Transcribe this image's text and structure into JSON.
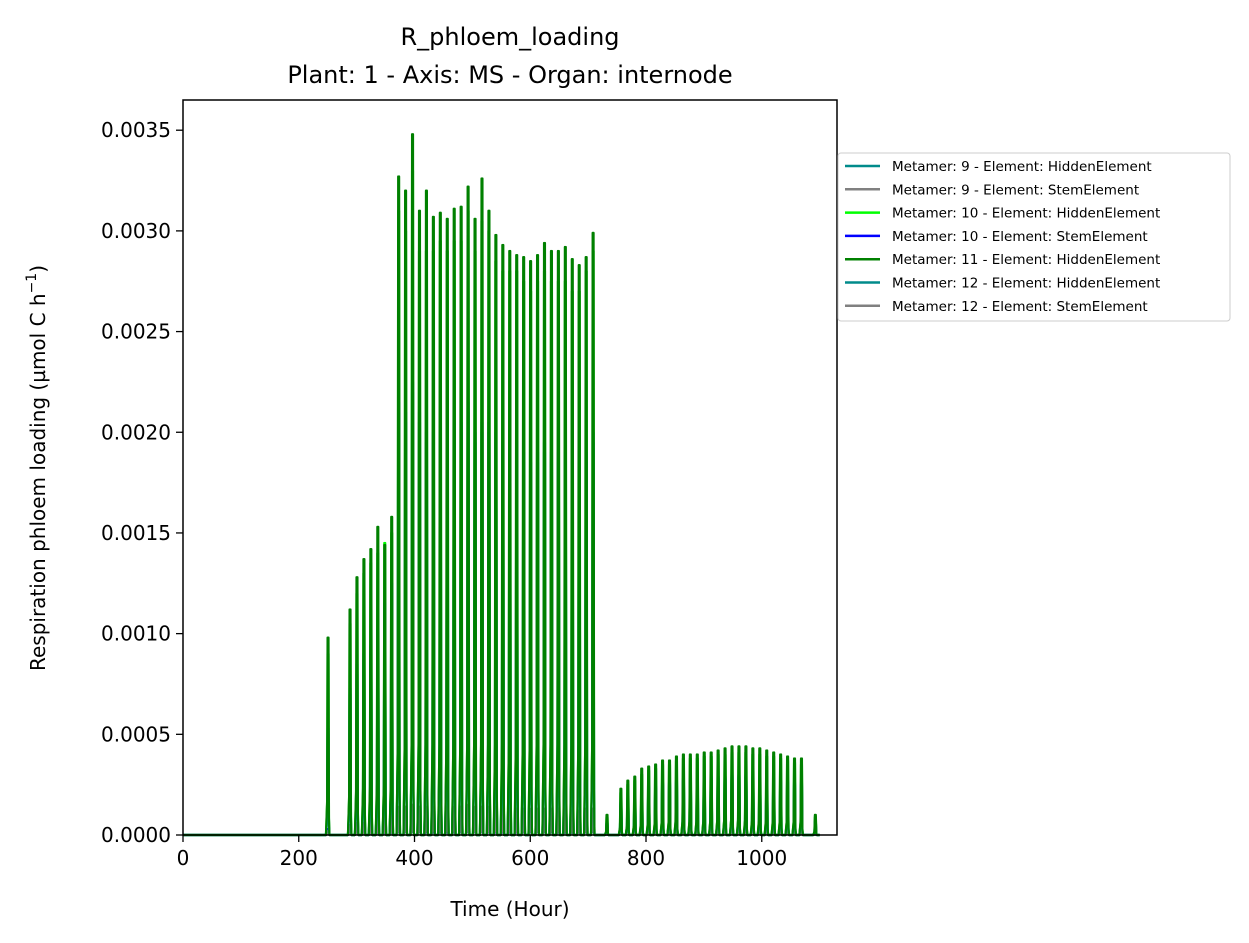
{
  "chart_data": {
    "type": "line",
    "title": "R_phloem_loading",
    "subtitle": "Plant: 1 - Axis: MS - Organ: internode",
    "xlabel": "Time (Hour)",
    "ylabel_main": "Respiration phloem loading (µmol C h",
    "ylabel_sup": "−1",
    "ylabel_tail": ")",
    "xlim": [
      0,
      1130
    ],
    "ylim": [
      0,
      0.00365
    ],
    "xticks": [
      {
        "value": 0,
        "label": "0"
      },
      {
        "value": 200,
        "label": "200"
      },
      {
        "value": 400,
        "label": "400"
      },
      {
        "value": 600,
        "label": "600"
      },
      {
        "value": 800,
        "label": "800"
      },
      {
        "value": 1000,
        "label": "1000"
      }
    ],
    "yticks": [
      {
        "value": 0,
        "label": "0.0000"
      },
      {
        "value": 0.0005,
        "label": "0.0005"
      },
      {
        "value": 0.001,
        "label": "0.0010"
      },
      {
        "value": 0.0015,
        "label": "0.0015"
      },
      {
        "value": 0.002,
        "label": "0.0020"
      },
      {
        "value": 0.0025,
        "label": "0.0025"
      },
      {
        "value": 0.003,
        "label": "0.0030"
      },
      {
        "value": 0.0035,
        "label": "0.0035"
      }
    ],
    "grid": false,
    "legend_position": "outside-right",
    "peak_times": [
      252,
      278,
      290,
      302,
      314,
      326,
      338,
      350,
      362,
      374,
      386,
      398,
      410,
      422,
      434,
      446,
      458,
      470,
      482,
      494,
      506,
      518,
      530,
      542,
      554,
      566,
      578,
      590,
      602,
      614,
      626,
      638,
      650,
      662,
      674,
      686,
      698,
      710,
      734,
      758,
      770,
      782,
      794,
      806,
      818,
      830,
      842,
      854,
      866,
      878,
      890,
      902,
      914,
      926,
      938,
      950,
      962,
      974,
      986,
      998,
      1010,
      1022,
      1034,
      1046,
      1058,
      1070,
      1094
    ],
    "series": [
      {
        "name": "Metamer: 9 - Element: HiddenElement",
        "color": "#008b8b",
        "peaks": [
          0.00053,
          0,
          0.00073,
          0.00085,
          0.0009,
          0.00094,
          0.00102,
          0.00115,
          0.00125,
          0.00215,
          0.0021,
          0.00225,
          0.0021,
          0.002,
          0.002,
          0.002,
          0.002,
          0.00205,
          0.00205,
          0.00215,
          0.002,
          0.00205,
          0.00205,
          0.002,
          0.00195,
          0.00195,
          0.00195,
          0.0019,
          0.00185,
          0.0019,
          0.00195,
          0.0019,
          0.0019,
          0.0019,
          0.00185,
          0.00185,
          0.0019,
          0.002,
          6e-05,
          0.00016,
          0.00018,
          0.0002,
          0.00022,
          0.00024,
          0.00024,
          0.00026,
          0.00026,
          0.00027,
          0.00028,
          0.00028,
          0.00028,
          0.00029,
          0.00029,
          0.00029,
          0.00029,
          0.0003,
          0.0003,
          0.0003,
          0.00029,
          0.00029,
          0.00028,
          0.00028,
          0.00027,
          0.00027,
          0.00026,
          0.00026,
          7e-05
        ]
      },
      {
        "name": "Metamer: 9 - Element: StemElement",
        "color": "#808080",
        "peaks": [
          2e-05,
          0,
          4e-05,
          5e-05,
          5e-05,
          6e-05,
          7e-05,
          7e-05,
          8e-05,
          0.00012,
          0.00013,
          0.00014,
          0.00013,
          0.00012,
          0.00012,
          0.00013,
          0.00012,
          0.00012,
          0.00013,
          0.00013,
          0.00012,
          0.00013,
          0.00012,
          0.00012,
          0.00012,
          0.00012,
          0.00012,
          0.00012,
          0.00011,
          0.00012,
          0.00012,
          0.00012,
          0.00012,
          0.00012,
          0.00011,
          0.00011,
          0.00012,
          0.00012,
          1e-05,
          2e-05,
          2e-05,
          2e-05,
          3e-05,
          3e-05,
          3e-05,
          3e-05,
          3e-05,
          3e-05,
          3e-05,
          3e-05,
          3e-05,
          3e-05,
          3e-05,
          3e-05,
          3e-05,
          3e-05,
          3e-05,
          3e-05,
          3e-05,
          3e-05,
          3e-05,
          3e-05,
          3e-05,
          3e-05,
          3e-05,
          3e-05,
          1e-05
        ]
      },
      {
        "name": "Metamer: 10 - Element: HiddenElement",
        "color": "#00ff00",
        "peaks": [
          0.0009,
          0,
          0.00105,
          0.0012,
          0.0013,
          0.00135,
          0.0014,
          0.00145,
          0.0015,
          0.0031,
          0.003,
          0.0033,
          0.0029,
          0.0029,
          0.0029,
          0.00295,
          0.0029,
          0.00295,
          0.00295,
          0.0031,
          0.0029,
          0.00305,
          0.003,
          0.00285,
          0.0028,
          0.0028,
          0.0028,
          0.00275,
          0.0027,
          0.00275,
          0.0028,
          0.00275,
          0.00275,
          0.00275,
          0.0027,
          0.0027,
          0.0028,
          0.0029,
          9e-05,
          0.00021,
          0.00025,
          0.00027,
          0.0003,
          0.00032,
          0.00033,
          0.00035,
          0.00035,
          0.00037,
          0.00038,
          0.00038,
          0.00038,
          0.00039,
          0.00039,
          0.0004,
          0.0004,
          0.00041,
          0.00041,
          0.00041,
          0.0004,
          0.0004,
          0.00039,
          0.00039,
          0.00038,
          0.00037,
          0.00036,
          0.00035,
          9e-05
        ]
      },
      {
        "name": "Metamer: 10 - Element: StemElement",
        "color": "#0000ff",
        "peaks": [
          3e-05,
          0,
          5e-05,
          6e-05,
          6e-05,
          7e-05,
          8e-05,
          8e-05,
          9e-05,
          0.00013,
          0.00014,
          0.00015,
          0.00014,
          0.00013,
          0.00013,
          0.00014,
          0.00013,
          0.00013,
          0.00014,
          0.00014,
          0.00013,
          0.00014,
          0.00013,
          0.00013,
          0.00013,
          0.00013,
          0.00013,
          0.00013,
          0.00012,
          0.00013,
          0.00013,
          0.00013,
          0.00013,
          0.00013,
          0.00012,
          0.00012,
          0.00013,
          0.00013,
          1e-05,
          2e-05,
          2e-05,
          2e-05,
          3e-05,
          3e-05,
          3e-05,
          3e-05,
          3e-05,
          3e-05,
          3e-05,
          3e-05,
          3e-05,
          3e-05,
          3e-05,
          3e-05,
          3e-05,
          3e-05,
          3e-05,
          3e-05,
          3e-05,
          3e-05,
          3e-05,
          3e-05,
          3e-05,
          3e-05,
          3e-05,
          3e-05,
          1e-05
        ]
      },
      {
        "name": "Metamer: 11 - Element: HiddenElement",
        "color": "#008000",
        "peaks": [
          0.00098,
          0,
          0.00112,
          0.00128,
          0.00137,
          0.00142,
          0.00153,
          0.00144,
          0.00158,
          0.00327,
          0.0032,
          0.00348,
          0.0031,
          0.0032,
          0.00307,
          0.00309,
          0.00306,
          0.00311,
          0.00312,
          0.00322,
          0.00306,
          0.00326,
          0.0031,
          0.00298,
          0.00293,
          0.0029,
          0.00288,
          0.00287,
          0.00285,
          0.00288,
          0.00294,
          0.0029,
          0.0029,
          0.00292,
          0.00286,
          0.00283,
          0.00287,
          0.00299,
          0.0001,
          0.00023,
          0.00027,
          0.00029,
          0.00033,
          0.00034,
          0.00035,
          0.00037,
          0.00037,
          0.00039,
          0.0004,
          0.0004,
          0.0004,
          0.00041,
          0.00041,
          0.00042,
          0.00043,
          0.00044,
          0.00044,
          0.00044,
          0.00043,
          0.00043,
          0.00042,
          0.00041,
          0.0004,
          0.00039,
          0.00038,
          0.00038,
          0.0001
        ]
      },
      {
        "name": "Metamer: 12 - Element: HiddenElement",
        "color": "#008b8b",
        "peaks": [
          0.0005,
          0,
          0.0007,
          0.0008,
          0.00087,
          0.0009,
          0.00098,
          0.0011,
          0.0012,
          0.0021,
          0.00205,
          0.0022,
          0.00205,
          0.00195,
          0.00195,
          0.00195,
          0.00195,
          0.002,
          0.002,
          0.0021,
          0.00195,
          0.002,
          0.002,
          0.00195,
          0.0019,
          0.0019,
          0.0019,
          0.00185,
          0.0018,
          0.00185,
          0.0019,
          0.00185,
          0.00185,
          0.00185,
          0.0018,
          0.0018,
          0.00185,
          0.00195,
          6e-05,
          0.00015,
          0.00017,
          0.00019,
          0.00021,
          0.00023,
          0.00023,
          0.00025,
          0.00025,
          0.00026,
          0.00027,
          0.00027,
          0.00027,
          0.00028,
          0.00028,
          0.00028,
          0.00028,
          0.00029,
          0.00029,
          0.00029,
          0.00028,
          0.00028,
          0.00027,
          0.00027,
          0.00026,
          0.00026,
          0.00025,
          0.00025,
          7e-05
        ]
      },
      {
        "name": "Metamer: 12 - Element: StemElement",
        "color": "#808080",
        "peaks": [
          2e-05,
          0,
          5e-05,
          6e-05,
          6e-05,
          7e-05,
          8e-05,
          9e-05,
          0.0001,
          0.00014,
          0.00014,
          0.00015,
          0.00014,
          0.00014,
          0.00014,
          0.00014,
          0.00014,
          0.00014,
          0.00014,
          0.00015,
          0.00014,
          0.00014,
          0.00014,
          0.00014,
          0.00013,
          0.00013,
          0.00013,
          0.00013,
          0.00013,
          0.00013,
          0.00013,
          0.00013,
          0.00013,
          0.00013,
          0.00012,
          0.00012,
          0.00013,
          0.00013,
          1e-05,
          2e-05,
          2e-05,
          2e-05,
          3e-05,
          3e-05,
          3e-05,
          3e-05,
          3e-05,
          3e-05,
          3e-05,
          3e-05,
          3e-05,
          3e-05,
          3e-05,
          3e-05,
          3e-05,
          3e-05,
          3e-05,
          3e-05,
          3e-05,
          3e-05,
          3e-05,
          3e-05,
          3e-05,
          3e-05,
          3e-05,
          3e-05,
          1e-05
        ]
      }
    ],
    "draw_order": [
      1,
      3,
      2,
      0,
      6,
      5,
      4
    ]
  }
}
